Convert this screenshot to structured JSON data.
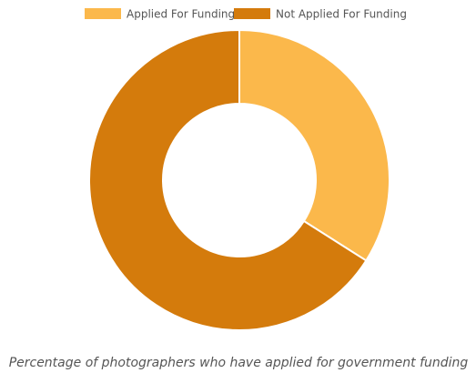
{
  "chart_data": {
    "type": "donut",
    "title": "Percentage of photographers who have applied for government funding",
    "categories": [
      "Applied For Funding",
      "Not Applied For Funding"
    ],
    "values": [
      34,
      66
    ],
    "colors": [
      "#fbb84b",
      "#d47b0c"
    ],
    "legend": "top"
  }
}
